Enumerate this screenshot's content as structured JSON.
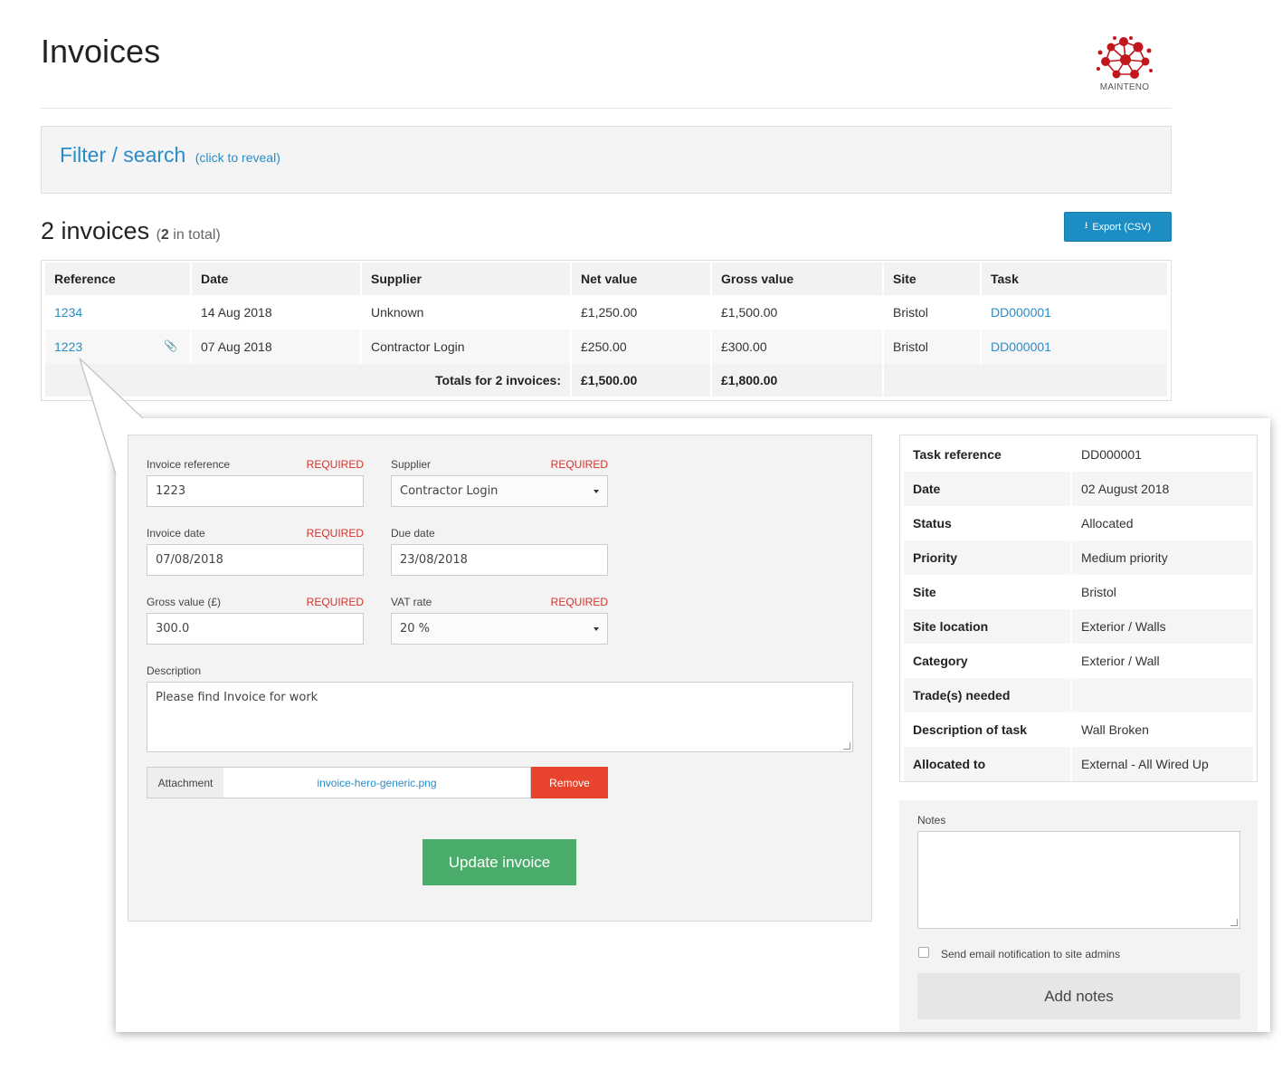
{
  "header": {
    "title": "Invoices",
    "logo_text": "MAINTENO"
  },
  "filter": {
    "title": "Filter / search",
    "hint": "(click to reveal)"
  },
  "summary": {
    "count_label": "2 invoices",
    "total_open": "(",
    "total_count": "2",
    "total_suffix": " in total)"
  },
  "export_button": {
    "label": "Export (CSV)",
    "icon": "download-icon"
  },
  "invoices": {
    "columns": [
      "Reference",
      "Date",
      "Supplier",
      "Net value",
      "Gross value",
      "Site",
      "Task"
    ],
    "rows": [
      {
        "reference": "1234",
        "date": "14 Aug 2018",
        "supplier": "Unknown",
        "net": "£1,250.00",
        "gross": "£1,500.00",
        "site": "Bristol",
        "task": "DD000001",
        "attachment": false
      },
      {
        "reference": "1223",
        "date": "07 Aug 2018",
        "supplier": "Contractor Login",
        "net": "£250.00",
        "gross": "£300.00",
        "site": "Bristol",
        "task": "DD000001",
        "attachment": true
      }
    ],
    "totals": {
      "label": "Totals for 2 invoices:",
      "net": "£1,500.00",
      "gross": "£1,800.00"
    }
  },
  "form": {
    "required_text": "REQUIRED",
    "invoice_reference": {
      "label": "Invoice reference",
      "value": "1223"
    },
    "supplier": {
      "label": "Supplier",
      "value": "Contractor Login"
    },
    "invoice_date": {
      "label": "Invoice date",
      "value": "07/08/2018"
    },
    "due_date": {
      "label": "Due date",
      "value": "23/08/2018"
    },
    "gross_value": {
      "label": "Gross value (£)",
      "value": "300.0"
    },
    "vat_rate": {
      "label": "VAT rate",
      "value": "20 %"
    },
    "description": {
      "label": "Description",
      "value": "Please find Invoice for work"
    },
    "attachment": {
      "label": "Attachment",
      "filename": "invoice-hero-generic.png",
      "remove_label": "Remove"
    },
    "update_label": "Update invoice"
  },
  "task": {
    "rows": [
      {
        "key": "Task reference",
        "value": "DD000001"
      },
      {
        "key": "Date",
        "value": "02 August 2018"
      },
      {
        "key": "Status",
        "value": "Allocated"
      },
      {
        "key": "Priority",
        "value": "Medium priority"
      },
      {
        "key": "Site",
        "value": "Bristol"
      },
      {
        "key": "Site location",
        "value": "Exterior / Walls"
      },
      {
        "key": "Category",
        "value": "Exterior / Wall"
      },
      {
        "key": "Trade(s) needed",
        "value": ""
      },
      {
        "key": "Description of task",
        "value": "Wall Broken"
      },
      {
        "key": "Allocated to",
        "value": "External - All Wired Up"
      }
    ]
  },
  "notes": {
    "label": "Notes",
    "value": "",
    "email_checkbox_label": "Send email notification to site admins",
    "email_checked": false,
    "add_label": "Add notes"
  },
  "colors": {
    "link": "#2a8cc7",
    "required": "#d2322d",
    "export": "#1c8ec3",
    "remove": "#e8432c",
    "update": "#4aac6a",
    "logo": "#c0161c"
  }
}
